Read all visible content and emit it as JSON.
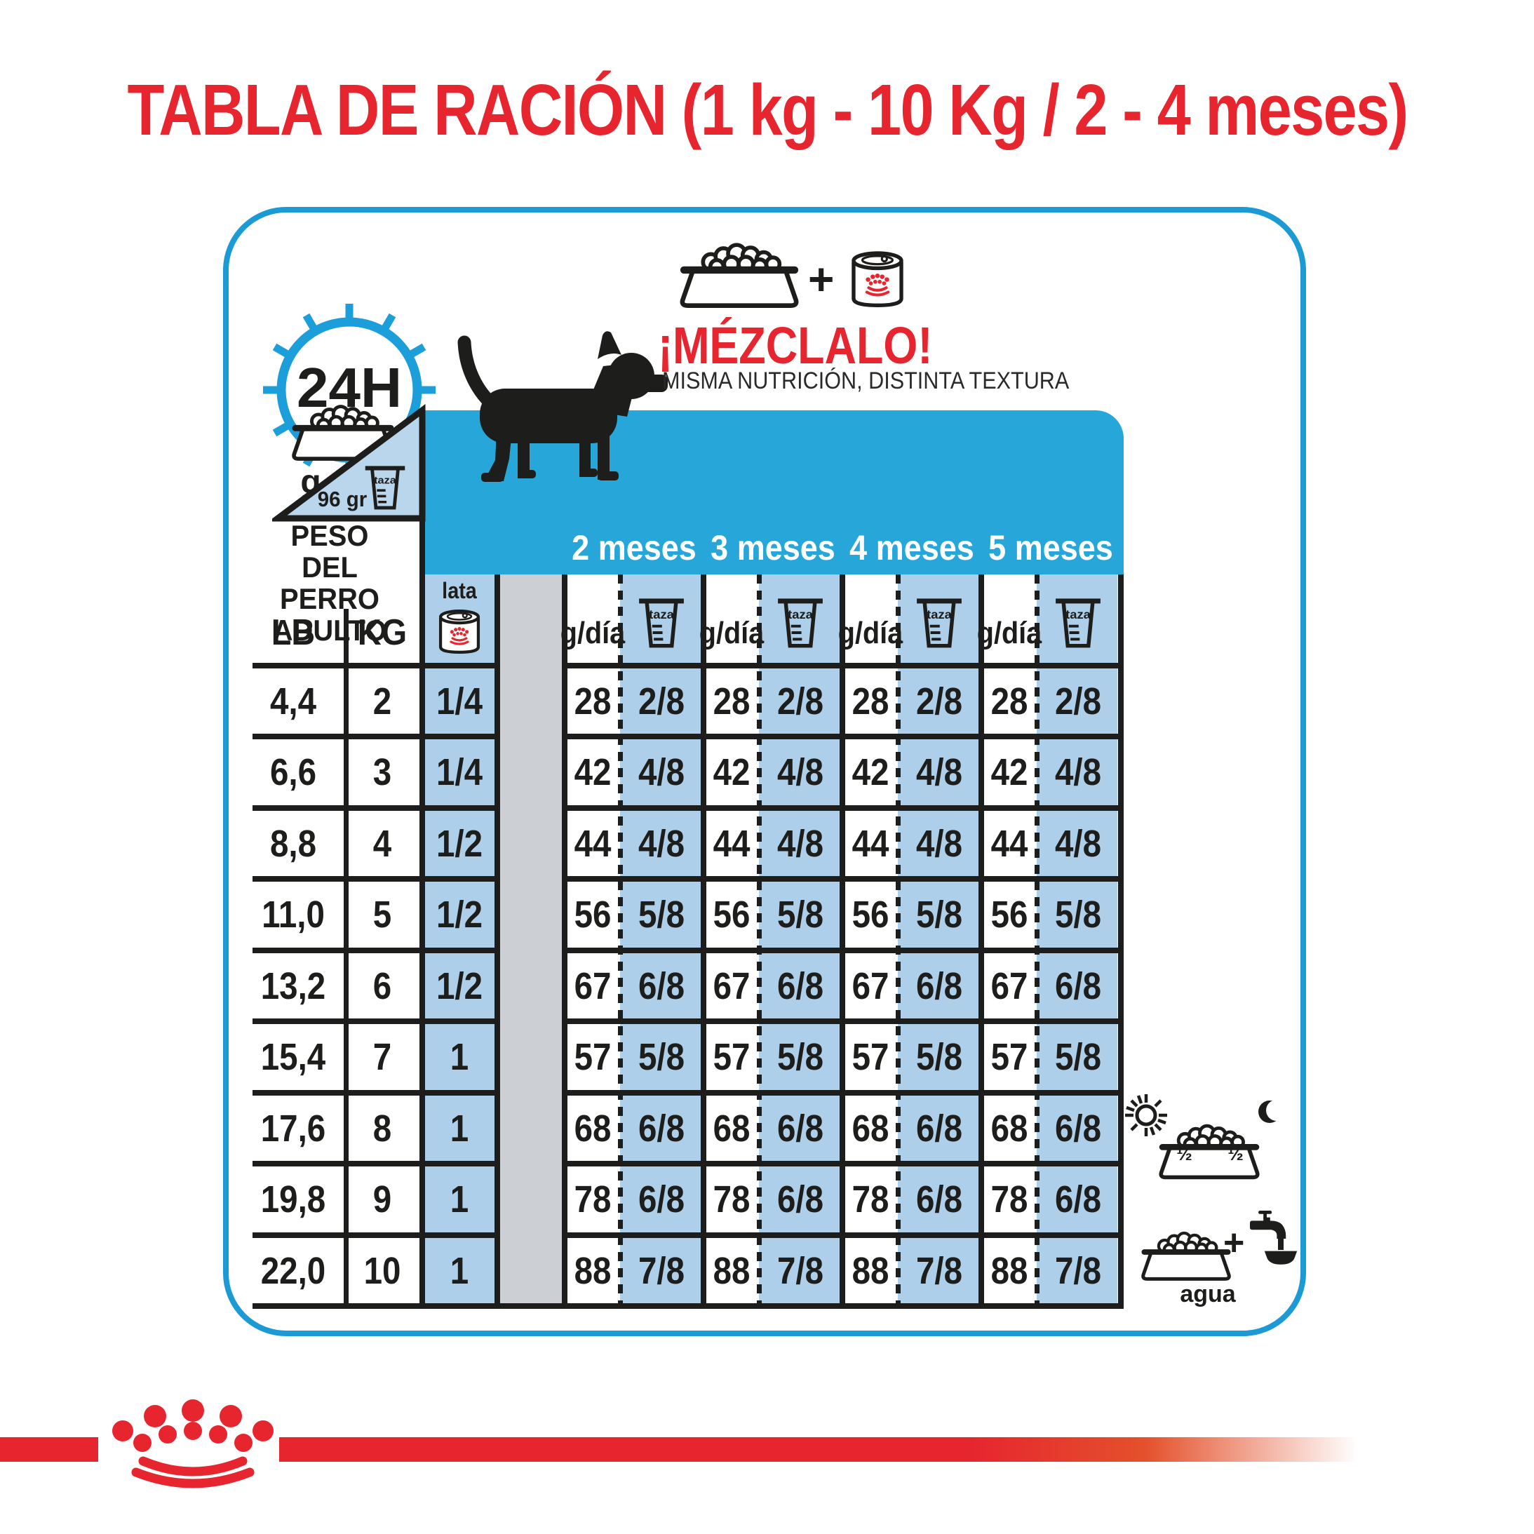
{
  "title": "TABLA DE RACIÓN (1 kg - 10 Kg / 2 - 4 meses)",
  "mix": {
    "headline": "¡MÉZCLALO!",
    "subline": "MISMA NUTRICIÓN, DISTINTA TEXTURA",
    "plus": "+"
  },
  "clock": {
    "label": "24H",
    "grams_label": "g",
    "cup_equiv": "96 gr",
    "cup_label": "taza"
  },
  "weight_header": {
    "title": "PESO\nDEL PERRO\nADULTO",
    "lb": "LB",
    "kg": "KG"
  },
  "can_col": {
    "label": "lata"
  },
  "months": [
    {
      "label": "2 meses"
    },
    {
      "label": "3 meses"
    },
    {
      "label": "4 meses"
    },
    {
      "label": "5 meses"
    }
  ],
  "col_headers": {
    "g_per_day": "g/día",
    "cup": "taza"
  },
  "side_icons": {
    "half_am": "½",
    "half_pm": "½",
    "water_plus": "+",
    "water_label": "agua"
  },
  "colors": {
    "brand_red": "#e6252f",
    "band_cyan": "#27a7d9",
    "panel_border": "#1b9ad6",
    "light_blue": "#aecfe9",
    "spacer_gray": "#ccd0d4",
    "ink": "#1d1d1b"
  },
  "chart_data": {
    "type": "table",
    "title": "TABLA DE RACIÓN (1 kg - 10 Kg / 2 - 4 meses)",
    "notes": {
      "cup_equivalence": "96 gr",
      "cup_unit": "taza",
      "availability": "24H",
      "water": "agua"
    },
    "column_groups": [
      "2 meses",
      "3 meses",
      "4 meses",
      "5 meses"
    ],
    "columns": [
      "LB",
      "KG",
      "lata",
      "2 meses g/día",
      "2 meses taza",
      "3 meses g/día",
      "3 meses taza",
      "4 meses g/día",
      "4 meses taza",
      "5 meses g/día",
      "5 meses taza"
    ],
    "rows": [
      [
        "4,4",
        "2",
        "1/4",
        "28",
        "2/8",
        "28",
        "2/8",
        "28",
        "2/8",
        "28",
        "2/8"
      ],
      [
        "6,6",
        "3",
        "1/4",
        "42",
        "4/8",
        "42",
        "4/8",
        "42",
        "4/8",
        "42",
        "4/8"
      ],
      [
        "8,8",
        "4",
        "1/2",
        "44",
        "4/8",
        "44",
        "4/8",
        "44",
        "4/8",
        "44",
        "4/8"
      ],
      [
        "11,0",
        "5",
        "1/2",
        "56",
        "5/8",
        "56",
        "5/8",
        "56",
        "5/8",
        "56",
        "5/8"
      ],
      [
        "13,2",
        "6",
        "1/2",
        "67",
        "6/8",
        "67",
        "6/8",
        "67",
        "6/8",
        "67",
        "6/8"
      ],
      [
        "15,4",
        "7",
        "1",
        "57",
        "5/8",
        "57",
        "5/8",
        "57",
        "5/8",
        "57",
        "5/8"
      ],
      [
        "17,6",
        "8",
        "1",
        "68",
        "6/8",
        "68",
        "6/8",
        "68",
        "6/8",
        "68",
        "6/8"
      ],
      [
        "19,8",
        "9",
        "1",
        "78",
        "6/8",
        "78",
        "6/8",
        "78",
        "6/8",
        "78",
        "6/8"
      ],
      [
        "22,0",
        "10",
        "1",
        "88",
        "7/8",
        "88",
        "7/8",
        "88",
        "7/8",
        "88",
        "7/8"
      ]
    ]
  }
}
